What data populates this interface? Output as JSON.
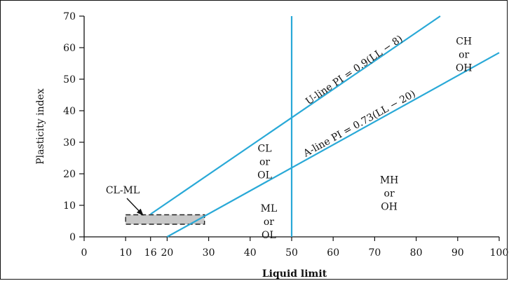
{
  "chart_data": {
    "type": "line",
    "xlabel": "Liquid limit",
    "ylabel": "Plasticity index",
    "xlim": [
      0,
      100
    ],
    "ylim": [
      0,
      70
    ],
    "xticks": [
      0,
      10,
      16,
      20,
      30,
      40,
      50,
      60,
      70,
      80,
      90,
      100
    ],
    "yticks": [
      0,
      10,
      20,
      30,
      40,
      50,
      60,
      70
    ],
    "colors": {
      "line": "#29a9d7",
      "axis": "#111111",
      "clml_fill": "#c8c8c8"
    },
    "series": [
      {
        "name": "U-line PI = 0.9(LL − 8)",
        "x": [
          16,
          85.8
        ],
        "y": [
          7.2,
          70
        ]
      },
      {
        "name": "A-line PI = 0.73(LL − 20)",
        "x": [
          20,
          100
        ],
        "y": [
          0,
          58.4
        ]
      },
      {
        "x": [
          50,
          50
        ],
        "y": [
          0,
          70
        ]
      }
    ],
    "clml_zone": {
      "label": "CL-ML",
      "x": [
        10,
        29
      ],
      "y": [
        4,
        7
      ]
    },
    "annotations": [
      {
        "lines": [
          "CH",
          "or",
          "OH"
        ],
        "x": 91.5,
        "y": 61
      },
      {
        "lines": [
          "CL",
          "or",
          "OL"
        ],
        "x": 43.5,
        "y": 27
      },
      {
        "lines": [
          "ML",
          "or",
          "OL"
        ],
        "x": 44.5,
        "y": 8
      },
      {
        "lines": [
          "MH",
          "or",
          "OH"
        ],
        "x": 73.5,
        "y": 17
      }
    ]
  }
}
